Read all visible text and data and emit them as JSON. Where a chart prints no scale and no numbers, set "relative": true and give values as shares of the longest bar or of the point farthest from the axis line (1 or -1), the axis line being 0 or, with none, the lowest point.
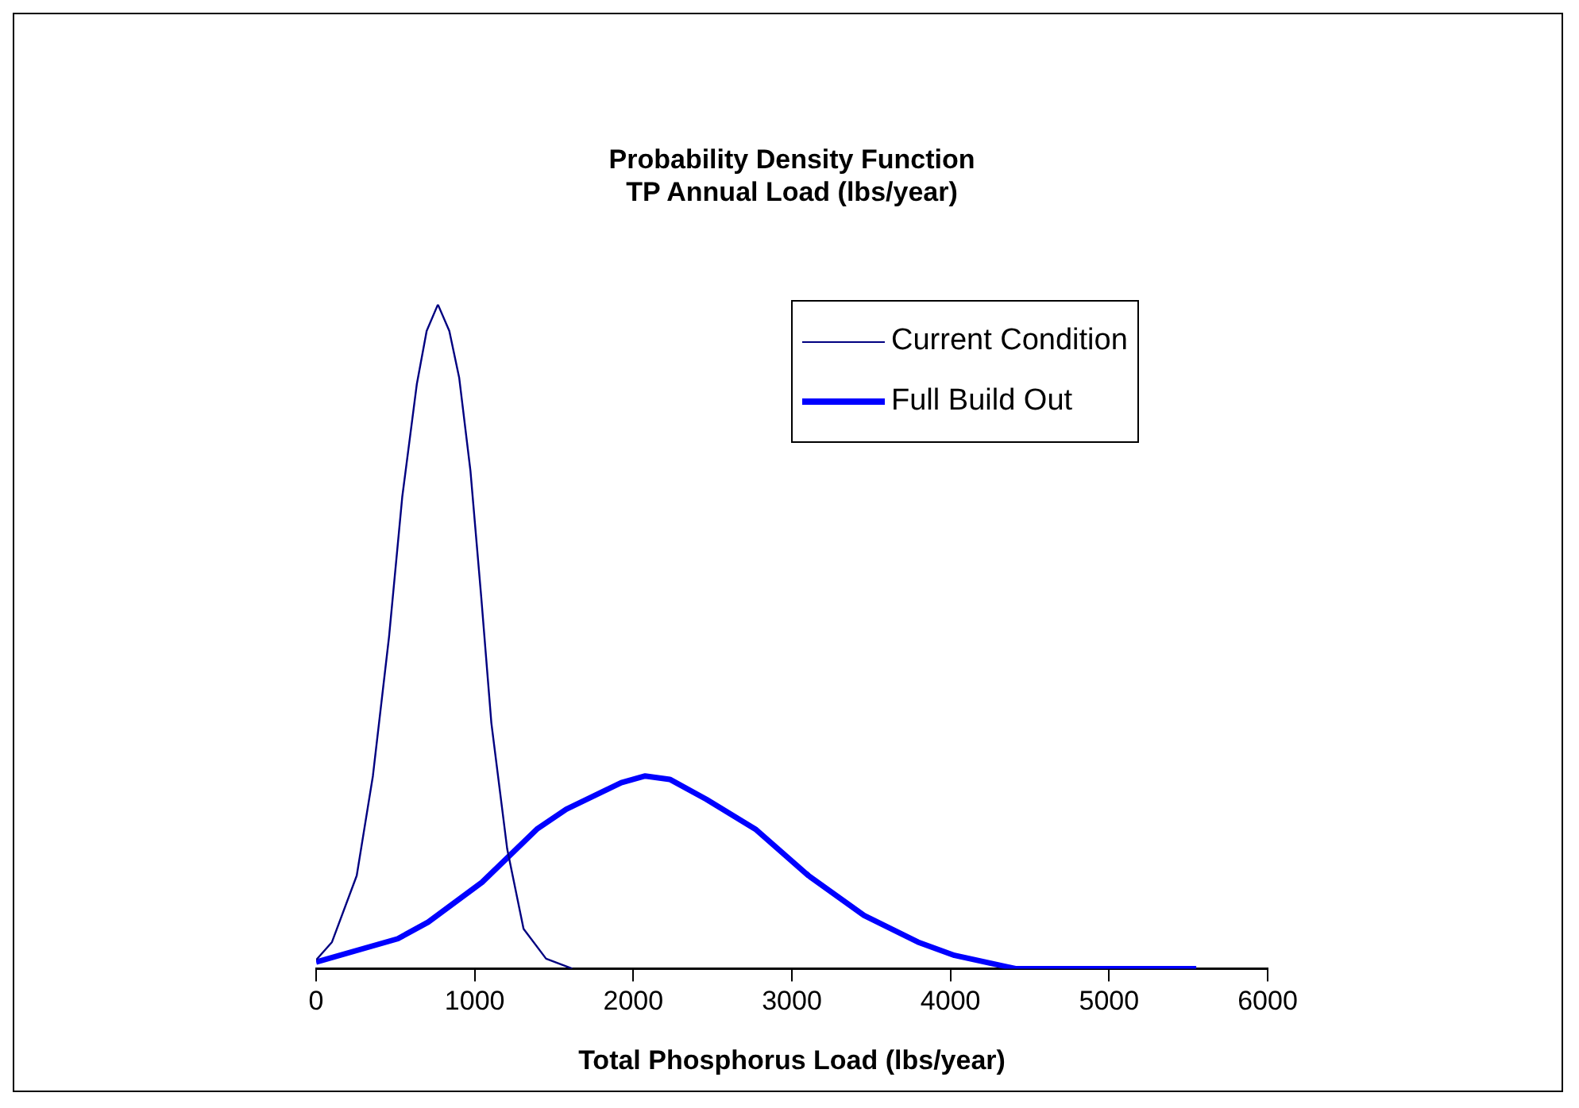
{
  "chart_data": {
    "type": "line",
    "title": [
      "Probability Density Function",
      "TP Annual Load (lbs/year)"
    ],
    "xlabel": "Total Phosphorus Load (lbs/year)",
    "relative": true,
    "xlim": [
      0,
      6000
    ],
    "xticks": [
      0,
      1000,
      2000,
      3000,
      4000,
      5000,
      6000
    ],
    "grid": false,
    "legend": "top right",
    "marker": "none",
    "series": [
      {
        "name": "Current Condition",
        "color": "#000080",
        "x": [
          0,
          100,
          256,
          358,
          460,
          543,
          635,
          697,
          768,
          840,
          902,
          973,
          1041,
          1105,
          1205,
          1308,
          1450,
          1615
        ],
        "values": [
          0.013,
          0.04,
          0.14,
          0.29,
          0.5,
          0.71,
          0.88,
          0.96,
          1,
          0.96,
          0.89,
          0.75,
          0.56,
          0.37,
          0.18,
          0.06,
          0.015,
          0
        ]
      },
      {
        "name": "Full Build Out",
        "color": "#0000ff",
        "x": [
          0,
          515,
          706,
          1046,
          1392,
          1577,
          1924,
          2075,
          2230,
          2460,
          2770,
          3105,
          3455,
          3795,
          4025,
          4410,
          4750,
          5550
        ],
        "values": [
          0.01,
          0.045,
          0.07,
          0.13,
          0.21,
          0.24,
          0.28,
          0.29,
          0.285,
          0.255,
          0.21,
          0.14,
          0.08,
          0.04,
          0.02,
          0,
          0,
          0
        ]
      }
    ]
  }
}
